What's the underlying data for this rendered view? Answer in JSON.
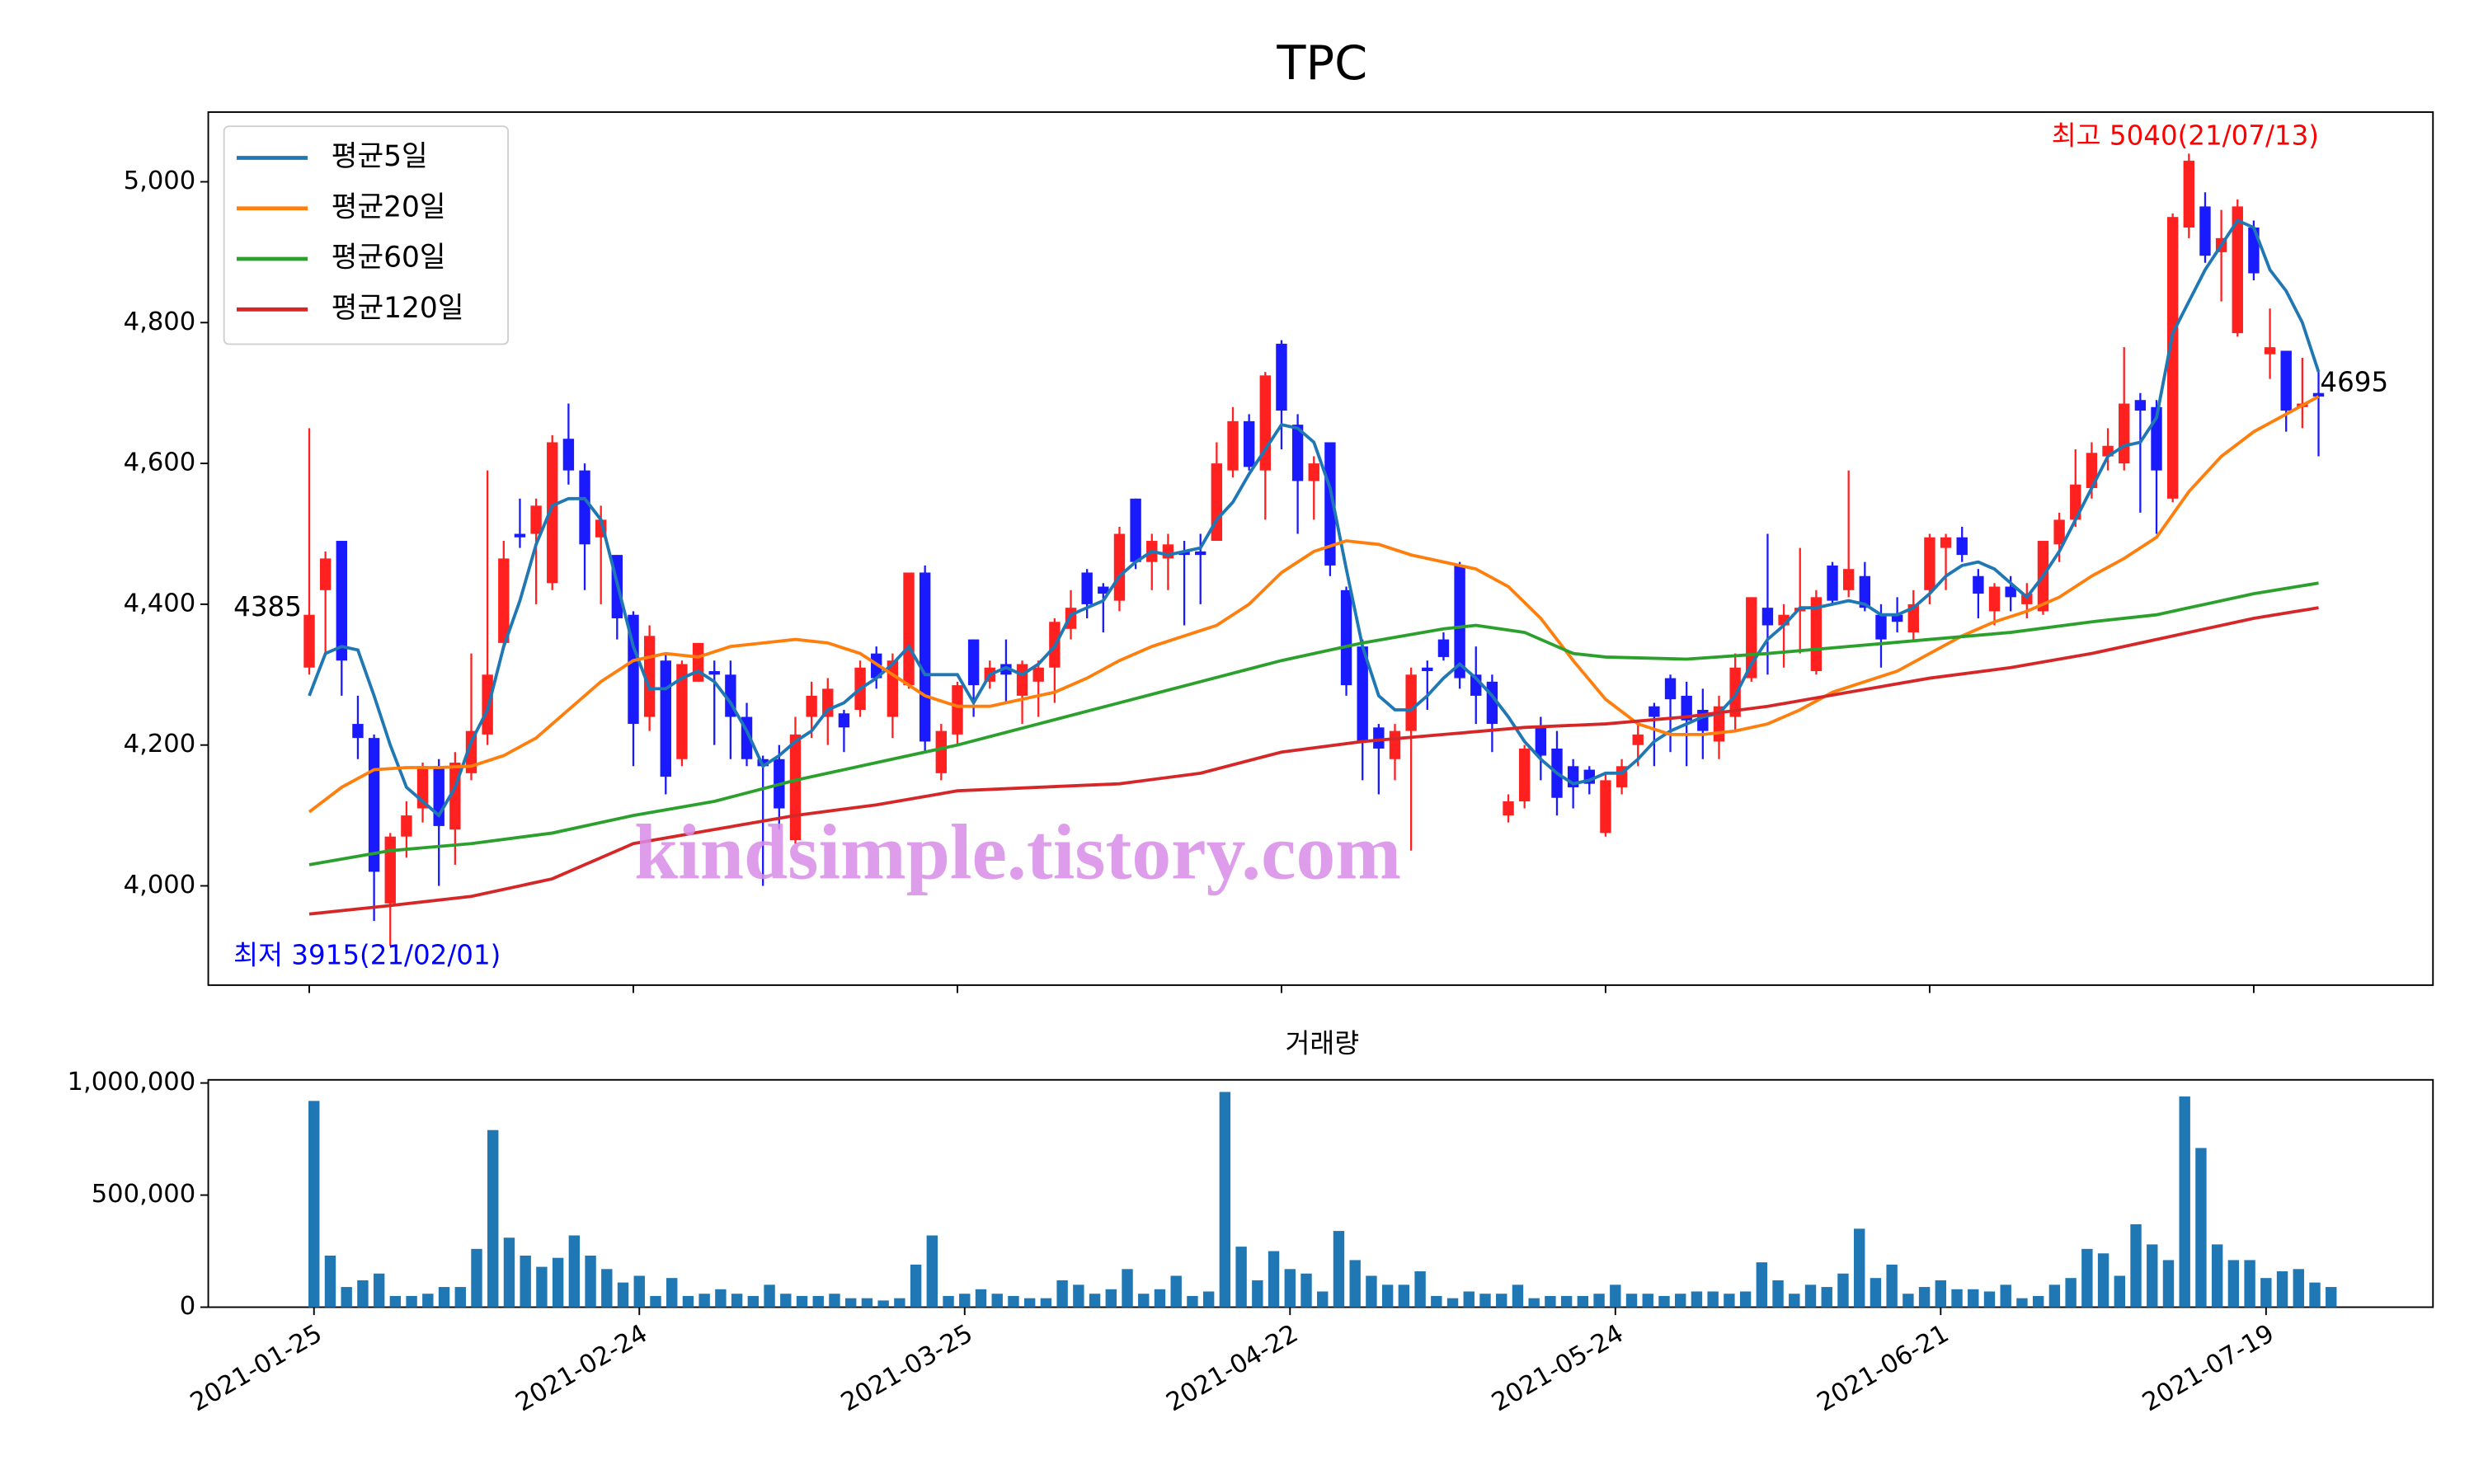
{
  "chart_data": [
    {
      "type": "candlestick",
      "title": "TPC",
      "legend": "upper left",
      "watermark": "kindsimple.tistory.com",
      "up_color": "#ff2020",
      "down_color": "#1a1aff",
      "categories": [
        "2021-01-25",
        null,
        null,
        null,
        null,
        null,
        null,
        null,
        null,
        null,
        null,
        null,
        null,
        null,
        null,
        null,
        null,
        null,
        null,
        null,
        "2021-02-24",
        null,
        null,
        null,
        null,
        null,
        null,
        null,
        null,
        null,
        null,
        null,
        null,
        null,
        null,
        null,
        null,
        null,
        null,
        null,
        "2021-03-25",
        null,
        null,
        null,
        null,
        null,
        null,
        null,
        null,
        null,
        null,
        null,
        null,
        null,
        null,
        null,
        null,
        null,
        null,
        null,
        "2021-04-22",
        null,
        null,
        null,
        null,
        null,
        null,
        null,
        null,
        null,
        null,
        null,
        null,
        null,
        null,
        null,
        null,
        null,
        null,
        null,
        "2021-05-24",
        null,
        null,
        null,
        null,
        null,
        null,
        null,
        null,
        null,
        null,
        null,
        null,
        null,
        null,
        null,
        null,
        null,
        null,
        null,
        "2021-06-21",
        null,
        null,
        null,
        null,
        null,
        null,
        null,
        null,
        null,
        null,
        null,
        null,
        null,
        null,
        null,
        null,
        null,
        null,
        null,
        "2021-07-19",
        null,
        null,
        null,
        null
      ],
      "open": [
        4310,
        4420,
        4490,
        4230,
        4210,
        3975,
        4070,
        4110,
        4170,
        4080,
        4160,
        4215,
        4345,
        4500,
        4500,
        4430,
        4635,
        4590,
        4495,
        4470,
        4385,
        4240,
        4320,
        4180,
        4290,
        4305,
        4300,
        4240,
        4180,
        4180,
        4065,
        4240,
        4240,
        4245,
        4250,
        4330,
        4240,
        4285,
        4445,
        4160,
        4215,
        4350,
        4290,
        4315,
        4270,
        4290,
        4310,
        4365,
        4445,
        4425,
        4405,
        4550,
        4460,
        4465,
        4475,
        4475,
        4490,
        4590,
        4660,
        4590,
        4770,
        4655,
        4575,
        4630,
        4420,
        4340,
        4225,
        4180,
        4220,
        4310,
        4350,
        4455,
        4300,
        4290,
        4100,
        4120,
        4225,
        4195,
        4170,
        4165,
        4075,
        4140,
        4200,
        4255,
        4295,
        4270,
        4250,
        4205,
        4240,
        4295,
        4395,
        4370,
        4390,
        4305,
        4455,
        4420,
        4440,
        4385,
        4385,
        4360,
        4420,
        4480,
        4495,
        4440,
        4390,
        4425,
        4400,
        4390,
        4485,
        4520,
        4565,
        4610,
        4600,
        4690,
        4680,
        4550,
        4935,
        4965,
        4900,
        4785,
        4935,
        4755,
        4760,
        4680,
        4700
      ],
      "high": [
        4650,
        4475,
        4490,
        4270,
        4215,
        4075,
        4120,
        4175,
        4180,
        4190,
        4330,
        4590,
        4490,
        4550,
        4550,
        4640,
        4685,
        4600,
        4540,
        4470,
        4390,
        4370,
        4330,
        4320,
        4345,
        4320,
        4320,
        4260,
        4185,
        4200,
        4240,
        4290,
        4295,
        4250,
        4320,
        4340,
        4330,
        4445,
        4455,
        4230,
        4290,
        4350,
        4320,
        4350,
        4320,
        4320,
        4380,
        4420,
        4450,
        4430,
        4510,
        4550,
        4500,
        4500,
        4490,
        4500,
        4630,
        4680,
        4670,
        4730,
        4775,
        4670,
        4610,
        4630,
        4425,
        4350,
        4230,
        4230,
        4310,
        4320,
        4360,
        4460,
        4340,
        4300,
        4130,
        4200,
        4240,
        4220,
        4180,
        4170,
        4160,
        4180,
        4230,
        4260,
        4300,
        4290,
        4280,
        4270,
        4330,
        4410,
        4500,
        4400,
        4480,
        4420,
        4460,
        4590,
        4460,
        4400,
        4410,
        4420,
        4500,
        4500,
        4510,
        4450,
        4430,
        4440,
        4430,
        4490,
        4530,
        4620,
        4630,
        4650,
        4765,
        4700,
        4690,
        4955,
        5040,
        4985,
        4960,
        4975,
        4945,
        4820,
        4760,
        4750,
        4730
      ],
      "low": [
        4300,
        4330,
        4270,
        4180,
        3950,
        3915,
        4040,
        4090,
        4000,
        4030,
        4150,
        4200,
        4340,
        4480,
        4400,
        4420,
        4570,
        4420,
        4400,
        4350,
        4170,
        4220,
        4130,
        4170,
        4290,
        4200,
        4180,
        4170,
        4000,
        4080,
        4060,
        4210,
        4200,
        4190,
        4240,
        4280,
        4210,
        4280,
        4190,
        4150,
        4200,
        4240,
        4280,
        4260,
        4230,
        4240,
        4260,
        4350,
        4380,
        4360,
        4390,
        4450,
        4420,
        4420,
        4370,
        4400,
        4490,
        4580,
        4590,
        4520,
        4620,
        4500,
        4520,
        4440,
        4270,
        4150,
        4130,
        4150,
        4050,
        4250,
        4320,
        4280,
        4230,
        4190,
        4090,
        4110,
        4150,
        4100,
        4110,
        4130,
        4070,
        4130,
        4170,
        4170,
        4190,
        4170,
        4180,
        4180,
        4220,
        4290,
        4300,
        4310,
        4330,
        4300,
        4400,
        4410,
        4390,
        4310,
        4360,
        4350,
        4400,
        4420,
        4460,
        4380,
        4370,
        4390,
        4380,
        4385,
        4460,
        4510,
        4550,
        4590,
        4590,
        4530,
        4500,
        4545,
        4920,
        4885,
        4830,
        4780,
        4860,
        4720,
        4645,
        4650,
        4610
      ],
      "close": [
        4385,
        4465,
        4320,
        4210,
        4020,
        4070,
        4100,
        4170,
        4085,
        4175,
        4220,
        4300,
        4465,
        4495,
        4540,
        4630,
        4590,
        4485,
        4520,
        4380,
        4230,
        4355,
        4155,
        4315,
        4345,
        4300,
        4240,
        4180,
        4170,
        4110,
        4215,
        4270,
        4280,
        4225,
        4310,
        4295,
        4320,
        4445,
        4205,
        4220,
        4285,
        4285,
        4310,
        4300,
        4315,
        4310,
        4375,
        4395,
        4400,
        4415,
        4500,
        4460,
        4490,
        4485,
        4470,
        4470,
        4600,
        4660,
        4595,
        4725,
        4675,
        4575,
        4600,
        4455,
        4285,
        4205,
        4195,
        4220,
        4300,
        4305,
        4325,
        4295,
        4270,
        4230,
        4120,
        4195,
        4185,
        4125,
        4140,
        4145,
        4150,
        4170,
        4215,
        4240,
        4265,
        4235,
        4220,
        4255,
        4310,
        4410,
        4370,
        4385,
        4395,
        4410,
        4405,
        4450,
        4395,
        4350,
        4375,
        4400,
        4495,
        4495,
        4470,
        4415,
        4425,
        4410,
        4415,
        4490,
        4520,
        4570,
        4615,
        4625,
        4685,
        4675,
        4590,
        4950,
        5030,
        4895,
        4920,
        4965,
        4870,
        4765,
        4675,
        4685,
        4695
      ],
      "series": [
        {
          "name": "평균5일",
          "color": "#1f77b4",
          "values": [
            4270,
            4330,
            4340,
            4335,
            4270,
            4200,
            4140,
            4120,
            4100,
            4140,
            4205,
            4250,
            4340,
            4405,
            4485,
            4540,
            4550,
            4550,
            4520,
            4430,
            4340,
            4280,
            4280,
            4295,
            4305,
            4290,
            4260,
            4220,
            4170,
            4185,
            4205,
            4220,
            4250,
            4260,
            4280,
            4295,
            4315,
            4340,
            4300,
            4300,
            4300,
            4260,
            4300,
            4310,
            4300,
            4315,
            4340,
            4385,
            4395,
            4405,
            4440,
            4460,
            4475,
            4470,
            4475,
            4480,
            4520,
            4545,
            4585,
            4620,
            4655,
            4650,
            4630,
            4565,
            4450,
            4340,
            4270,
            4250,
            4250,
            4270,
            4295,
            4315,
            4295,
            4270,
            4240,
            4205,
            4180,
            4160,
            4145,
            4150,
            4160,
            4160,
            4180,
            4205,
            4220,
            4230,
            4240,
            4245,
            4270,
            4315,
            4350,
            4370,
            4395,
            4395,
            4400,
            4405,
            4400,
            4385,
            4385,
            4395,
            4415,
            4440,
            4455,
            4460,
            4450,
            4430,
            4410,
            4440,
            4475,
            4520,
            4565,
            4610,
            4625,
            4630,
            4665,
            4785,
            4830,
            4875,
            4910,
            4945,
            4935,
            4875,
            4845,
            4800,
            4730
          ]
        },
        {
          "name": "평균20일",
          "color": "#ff7f0e",
          "x": [
            0,
            2,
            4,
            6,
            8,
            10,
            12,
            14,
            16,
            18,
            20,
            22,
            24,
            26,
            28,
            30,
            32,
            34,
            36,
            38,
            40,
            42,
            44,
            46,
            48,
            50,
            52,
            54,
            56,
            58,
            60,
            62,
            64,
            66,
            68,
            70,
            72,
            74,
            76,
            78,
            80,
            82,
            84,
            86,
            88,
            90,
            92,
            94,
            96,
            98,
            100,
            102,
            104,
            106,
            108,
            110,
            112,
            114,
            116,
            118,
            120,
            122,
            124
          ],
          "values": [
            4105,
            4140,
            4165,
            4168,
            4168,
            4170,
            4185,
            4210,
            4250,
            4290,
            4320,
            4330,
            4325,
            4340,
            4345,
            4350,
            4345,
            4330,
            4300,
            4270,
            4255,
            4255,
            4265,
            4275,
            4295,
            4320,
            4340,
            4355,
            4370,
            4400,
            4445,
            4475,
            4490,
            4485,
            4470,
            4460,
            4450,
            4425,
            4380,
            4320,
            4265,
            4230,
            4215,
            4215,
            4220,
            4230,
            4250,
            4275,
            4290,
            4305,
            4330,
            4355,
            4375,
            4390,
            4410,
            4440,
            4465,
            4495,
            4560,
            4610,
            4645,
            4670,
            4695
          ]
        },
        {
          "name": "평균60일",
          "color": "#2ca02c",
          "x": [
            0,
            5,
            10,
            15,
            20,
            25,
            30,
            35,
            40,
            45,
            50,
            55,
            60,
            65,
            70,
            72,
            75,
            78,
            80,
            85,
            90,
            95,
            100,
            105,
            110,
            114,
            116,
            120,
            124
          ],
          "values": [
            4030,
            4050,
            4060,
            4075,
            4100,
            4120,
            4150,
            4175,
            4200,
            4230,
            4260,
            4290,
            4320,
            4345,
            4365,
            4370,
            4360,
            4330,
            4325,
            4322,
            4330,
            4340,
            4350,
            4360,
            4375,
            4385,
            4395,
            4415,
            4430
          ]
        },
        {
          "name": "평균120일",
          "color": "#d62728",
          "x": [
            0,
            5,
            10,
            15,
            20,
            25,
            30,
            35,
            40,
            45,
            50,
            55,
            60,
            65,
            70,
            75,
            80,
            85,
            90,
            95,
            100,
            105,
            110,
            115,
            120,
            124
          ],
          "values": [
            3960,
            3972,
            3985,
            4010,
            4060,
            4080,
            4100,
            4115,
            4135,
            4140,
            4145,
            4160,
            4190,
            4205,
            4215,
            4225,
            4230,
            4240,
            4255,
            4275,
            4295,
            4310,
            4330,
            4355,
            4380,
            4395
          ]
        }
      ],
      "annotations": [
        {
          "text": "최고 5040(21/07/13)",
          "color": "#ff0000"
        },
        {
          "text": "최저 3915(21/02/01)",
          "color": "#0000ff"
        }
      ],
      "ylim": [
        3859,
        5099
      ],
      "yticks": [
        {
          "value": 4000,
          "label": "4,000"
        },
        {
          "value": 4200,
          "label": "4,200"
        },
        {
          "value": 4400,
          "label": "4,400"
        },
        {
          "value": 4600,
          "label": "4,600"
        },
        {
          "value": 4800,
          "label": "4,800"
        },
        {
          "value": 5000,
          "label": "5,000"
        }
      ]
    },
    {
      "type": "bar",
      "title": "거래량",
      "color": "#1f77b4",
      "values": [
        920000,
        230000,
        90000,
        120000,
        150000,
        50000,
        50000,
        60000,
        90000,
        90000,
        260000,
        790000,
        310000,
        230000,
        180000,
        220000,
        320000,
        230000,
        170000,
        110000,
        140000,
        50000,
        130000,
        50000,
        60000,
        80000,
        60000,
        50000,
        100000,
        60000,
        50000,
        50000,
        60000,
        40000,
        40000,
        30000,
        40000,
        190000,
        320000,
        50000,
        60000,
        80000,
        60000,
        50000,
        40000,
        40000,
        120000,
        100000,
        60000,
        80000,
        170000,
        60000,
        80000,
        140000,
        50000,
        70000,
        960000,
        270000,
        120000,
        250000,
        170000,
        150000,
        70000,
        340000,
        210000,
        140000,
        100000,
        100000,
        160000,
        50000,
        40000,
        70000,
        60000,
        60000,
        100000,
        40000,
        50000,
        50000,
        50000,
        60000,
        100000,
        60000,
        60000,
        50000,
        60000,
        70000,
        70000,
        60000,
        70000,
        200000,
        120000,
        60000,
        100000,
        90000,
        150000,
        350000,
        130000,
        190000,
        60000,
        90000,
        120000,
        80000,
        80000,
        70000,
        100000,
        40000,
        50000,
        100000,
        130000,
        260000,
        240000,
        140000,
        370000,
        280000,
        210000,
        940000,
        710000,
        280000,
        210000,
        210000,
        130000,
        160000,
        170000,
        110000,
        90000
      ],
      "ylim": [
        0,
        1014000
      ],
      "yticks": [
        0,
        {
          "value": 500000,
          "label": "500,000"
        },
        {
          "value": 1000000,
          "label": "1,000,000"
        }
      ]
    }
  ]
}
